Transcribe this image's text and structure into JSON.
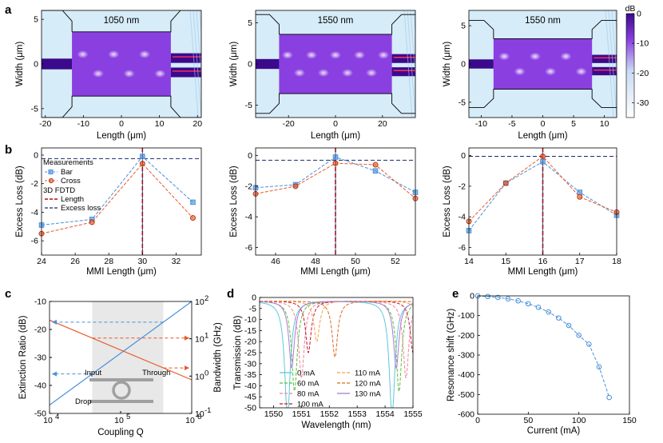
{
  "panel_letters": {
    "a": "a",
    "b": "b",
    "c": "c",
    "d": "d",
    "e": "e"
  },
  "colors": {
    "blue": "#4a90d9",
    "orange": "#e8582a",
    "red_line": "#b01010",
    "navy_line": "#1a2a6c",
    "field_dark": "#3b0a8c",
    "field_mid": "#8a3fe0",
    "field_light": "#d6ecf8"
  },
  "icons": {
    "ring": "ring-resonator-icon",
    "arrow": "arrow-icon"
  },
  "chart_data": [
    {
      "id": "a1",
      "type": "heatmap",
      "title": "1050 nm",
      "xlabel": "Length (μm)",
      "ylabel": "Width (μm)",
      "xlim": [
        -21,
        21
      ],
      "ylim": [
        -6,
        6
      ],
      "xticks": [
        -20,
        -10,
        0,
        10,
        20
      ],
      "yticks": [
        -5,
        0,
        5
      ]
    },
    {
      "id": "a2",
      "type": "heatmap",
      "title": "1550 nm",
      "xlabel": "Length (μm)",
      "ylabel": "Width (μm)",
      "xlim": [
        -34,
        34
      ],
      "ylim": [
        -6.5,
        6.5
      ],
      "xticks": [
        -20,
        0,
        20
      ],
      "yticks": [
        -5,
        0,
        5
      ]
    },
    {
      "id": "a3",
      "type": "heatmap",
      "title": "1550 nm",
      "xlabel": "Length (μm)",
      "ylabel": "Width (μm)",
      "xlim": [
        -12,
        12
      ],
      "ylim": [
        -7,
        7
      ],
      "xticks": [
        -10,
        -5,
        0,
        5,
        10
      ],
      "yticks": [
        -5,
        0,
        5
      ],
      "colorbar": {
        "label": "dB",
        "ticks": [
          0,
          -10,
          -20,
          -30
        ],
        "range": [
          -35,
          0
        ]
      }
    },
    {
      "id": "b1",
      "type": "line",
      "xlabel": "MMI Length (μm)",
      "ylabel": "Excess Loss (dB)",
      "xlim": [
        24,
        33.5
      ],
      "ylim": [
        -7,
        0.5
      ],
      "xticks": [
        24,
        26,
        28,
        30,
        32
      ],
      "yticks": [
        0,
        -2,
        -4,
        -6
      ],
      "x": [
        24,
        27,
        30,
        33
      ],
      "series": [
        {
          "name": "Bar",
          "values": [
            -4.9,
            -4.5,
            -0.1,
            -3.3
          ]
        },
        {
          "name": "Cross",
          "values": [
            -5.5,
            -4.7,
            -0.6,
            -4.4
          ]
        }
      ],
      "fdtd": {
        "length": 30,
        "excess_loss": -0.25
      },
      "legend": {
        "title": "Measurements",
        "bar": "Bar",
        "cross": "Cross",
        "fdtd_title": "3D FDTD",
        "length": "Length",
        "excess": "Excess loss"
      }
    },
    {
      "id": "b2",
      "type": "line",
      "xlabel": "MMI Length (μm)",
      "ylabel": "Excess Loss (dB)",
      "xlim": [
        45,
        53
      ],
      "ylim": [
        -6.5,
        0.5
      ],
      "xticks": [
        46,
        48,
        50,
        52
      ],
      "yticks": [
        0,
        -2,
        -4,
        -6
      ],
      "x": [
        45,
        47,
        49,
        51,
        53
      ],
      "series": [
        {
          "name": "Bar",
          "values": [
            -2.1,
            -1.9,
            -0.1,
            -1.0,
            -2.4
          ]
        },
        {
          "name": "Cross",
          "values": [
            -2.5,
            -2.0,
            -0.5,
            -0.6,
            -2.8
          ]
        }
      ],
      "fdtd": {
        "length": 49,
        "excess_loss": -0.3
      }
    },
    {
      "id": "b3",
      "type": "line",
      "xlabel": "MMI Length (μm)",
      "ylabel": "Excess Loss (dB)",
      "xlim": [
        14,
        18
      ],
      "ylim": [
        -6.5,
        0.5
      ],
      "xticks": [
        14,
        15,
        16,
        17,
        18
      ],
      "yticks": [
        0,
        -2,
        -4,
        -6
      ],
      "x": [
        14,
        15,
        16,
        17,
        18
      ],
      "series": [
        {
          "name": "Bar",
          "values": [
            -4.9,
            -1.8,
            -0.4,
            -2.4,
            -3.9
          ]
        },
        {
          "name": "Cross",
          "values": [
            -4.3,
            -1.8,
            -0.05,
            -2.7,
            -3.7
          ]
        }
      ],
      "fdtd": {
        "length": 16,
        "excess_loss": -0.05
      }
    },
    {
      "id": "c",
      "type": "line",
      "xlabel": "Coupling Q",
      "ylabel": "Extinction Ratio (dB)",
      "ylabel_right": "Bandwidth (GHz)",
      "x_log_range": [
        4,
        6
      ],
      "xtick_labels": [
        "10",
        "10",
        "10"
      ],
      "xtick_exps": [
        "4",
        "5",
        "6"
      ],
      "ylim": [
        -50,
        -10
      ],
      "yticks": [
        -10,
        -20,
        -30,
        -40,
        -50
      ],
      "y2_log_range": [
        -1,
        2
      ],
      "y2tick_labels": [
        "10",
        "10",
        "10",
        "10"
      ],
      "y2tick_exps": [
        "2",
        "1",
        "0",
        "-1"
      ],
      "extinction_log_q": [
        4,
        6
      ],
      "extinction_db": [
        -47,
        -10
      ],
      "bandwidth_log_q": [
        4,
        6
      ],
      "bandwidth_log_ghz": [
        1.5,
        -0.1
      ],
      "shaded_log_q": [
        4.6,
        5.6
      ],
      "port_labels": {
        "input": "Input",
        "through": "Through",
        "drop": "Drop"
      }
    },
    {
      "id": "d",
      "type": "line",
      "xlabel": "Wavelength (nm)",
      "ylabel": "Transmission (dB)",
      "xlim": [
        1549.5,
        1555
      ],
      "ylim": [
        -50,
        0
      ],
      "xticks": [
        1550,
        1551,
        1552,
        1553,
        1554,
        1555
      ],
      "yticks": [
        0,
        -5,
        -10,
        -15,
        -20,
        -25,
        -30,
        -35,
        -40,
        -45,
        -50
      ],
      "series": [
        {
          "name": "0 mA",
          "dips_nm": [
            1550.5,
            1554.25
          ],
          "depth_db": -28
        },
        {
          "name": "60 mA",
          "dips_nm": [
            1550.75,
            1554.5
          ],
          "depth_db": -22
        },
        {
          "name": "80 mA",
          "dips_nm": [
            1551.0,
            1554.75
          ],
          "depth_db": -19
        },
        {
          "name": "100 mA",
          "dips_nm": [
            1551.25
          ],
          "depth_db": -25
        },
        {
          "name": "110 mA",
          "dips_nm": [
            1551.55
          ],
          "depth_db": -20
        },
        {
          "name": "120 mA",
          "dips_nm": [
            1552.2
          ],
          "depth_db": -27
        },
        {
          "name": "130 mA",
          "dips_nm": [
            1554.4
          ],
          "depth_db": -32
        }
      ]
    },
    {
      "id": "e",
      "type": "line",
      "xlabel": "Current (mA)",
      "ylabel": "Resonance shift (GHz)",
      "xlim": [
        0,
        150
      ],
      "ylim": [
        -600,
        0
      ],
      "xticks": [
        0,
        50,
        100,
        150
      ],
      "yticks": [
        0,
        -100,
        -200,
        -300,
        -400,
        -500,
        -600
      ],
      "x": [
        0,
        10,
        20,
        30,
        40,
        50,
        60,
        70,
        80,
        90,
        100,
        110,
        120,
        130
      ],
      "values": [
        0,
        -3,
        -8,
        -15,
        -25,
        -40,
        -58,
        -82,
        -112,
        -150,
        -200,
        -245,
        -360,
        -515
      ]
    }
  ]
}
